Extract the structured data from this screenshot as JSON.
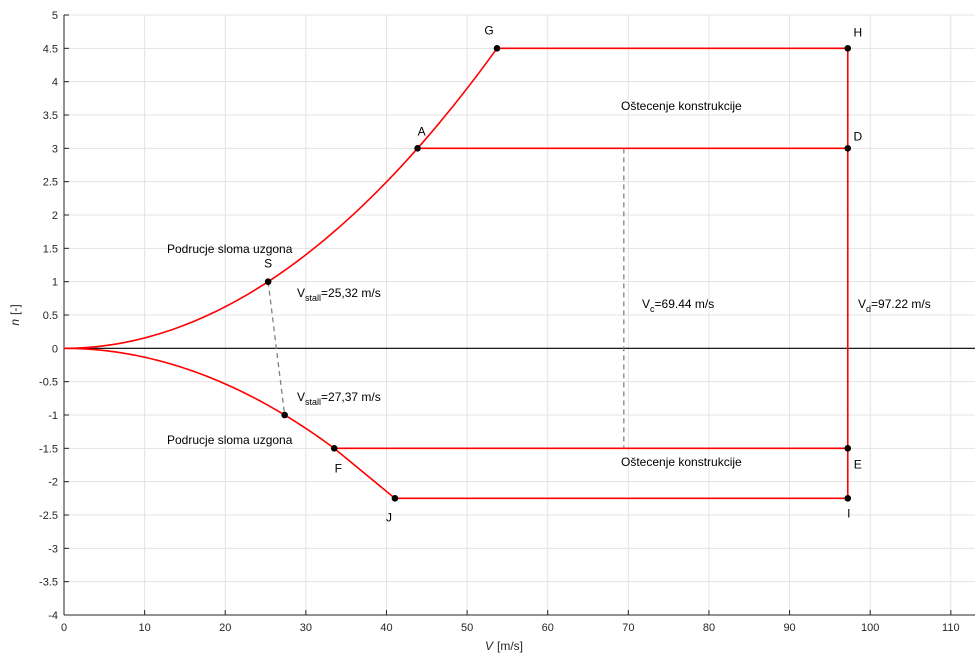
{
  "chart_data": {
    "type": "line",
    "xlabel": {
      "symbol": "V",
      "unit": "[m/s]"
    },
    "ylabel": {
      "symbol": "n",
      "unit": "[-]"
    },
    "xlim": [
      0,
      113
    ],
    "ylim": [
      -4,
      5
    ],
    "x_ticks": [
      0,
      10,
      20,
      30,
      40,
      50,
      60,
      70,
      80,
      90,
      100,
      110
    ],
    "y_ticks": [
      -4,
      -3.5,
      -3,
      -2.5,
      -2,
      -1.5,
      -1,
      -0.5,
      0,
      0.5,
      1,
      1.5,
      2,
      2.5,
      3,
      3.5,
      4,
      4.5,
      5
    ],
    "grid": true,
    "colors": {
      "envelope": "#ff0000",
      "stall_line": "#808080",
      "points": "#000000",
      "grid": "#e3e3e3",
      "axes": "#262626",
      "zero_line": "#000000"
    },
    "stall_speed_positive": 25.32,
    "stall_speed_negative": 27.37,
    "positive_n_limit": 4.5,
    "negative_n_limit": -2.25,
    "points": [
      {
        "name": "S",
        "x": 25.32,
        "y": 1
      },
      {
        "name": "A",
        "x": 43.86,
        "y": 3
      },
      {
        "name": "G",
        "x": 53.71,
        "y": 4.5
      },
      {
        "name": "H",
        "x": 97.22,
        "y": 4.5
      },
      {
        "name": "D",
        "x": 97.22,
        "y": 3
      },
      {
        "name": "E",
        "x": 97.22,
        "y": -1.5
      },
      {
        "name": "I",
        "x": 97.22,
        "y": -2.25
      },
      {
        "name": "J",
        "x": 41.05,
        "y": -2.25
      },
      {
        "name": "F",
        "x": 33.52,
        "y": -1.5
      },
      {
        "name": "",
        "x": 27.37,
        "y": -1
      }
    ],
    "segments": [
      {
        "from": "A",
        "to": "D",
        "y": 3
      },
      {
        "from": "G",
        "to": "H",
        "y": 4.5
      },
      {
        "from": "F",
        "to": "E",
        "y": -1.5
      },
      {
        "from": "J",
        "to": "I",
        "y": -2.25
      },
      {
        "from": "H",
        "to": "I",
        "x": 97.22
      },
      {
        "from": "F",
        "to": "J"
      }
    ],
    "curves": [
      {
        "kind": "parabola_positive",
        "x_from": 0,
        "x_to": 53.71,
        "vs": 25.32
      },
      {
        "kind": "parabola_negative",
        "x_from": 0,
        "x_to": 33.52,
        "vs": 27.37
      }
    ],
    "dashed_lines": [
      {
        "x1": 25.32,
        "y1": 1,
        "x2": 27.37,
        "y2": -1
      },
      {
        "x1": 69.44,
        "y1": 3,
        "x2": 69.44,
        "y2": -1.5
      }
    ],
    "annotations": {
      "stall_upper_region": "Podrucje sloma uzgona",
      "stall_lower_region": "Podrucje sloma uzgona",
      "damage_upper": "Oštecenje konstrukcije",
      "damage_lower": "Oštecenje konstrukcije",
      "vstall_pos": {
        "main": "V",
        "sub": "stall",
        "rest": "=25,32 m/s"
      },
      "vstall_neg": {
        "main": "V",
        "sub": "stall",
        "rest": "=27,37 m/s"
      },
      "vc": {
        "main": "V",
        "sub": "c",
        "rest": "=69.44 m/s"
      },
      "vd": {
        "main": "V",
        "sub": "d",
        "rest": "=97.22 m/s"
      }
    }
  }
}
